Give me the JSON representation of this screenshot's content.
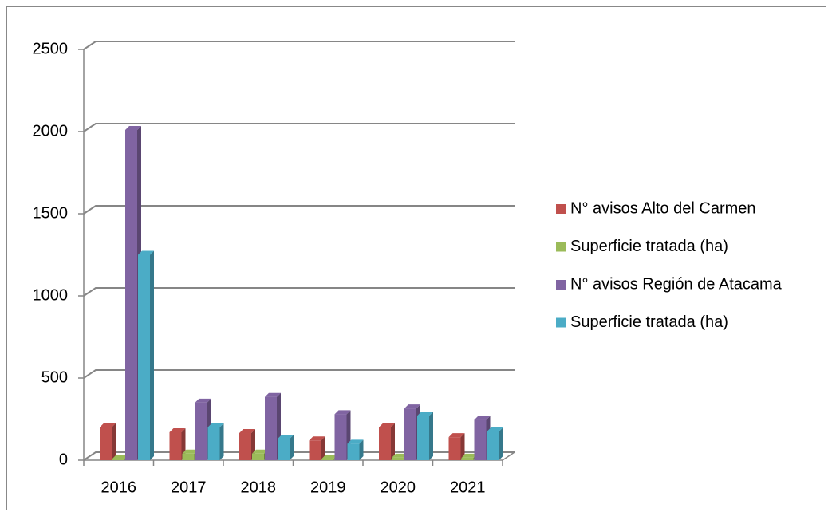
{
  "chart_data": {
    "type": "bar3d",
    "categories": [
      "2016",
      "2017",
      "2018",
      "2019",
      "2020",
      "2021"
    ],
    "series": [
      {
        "name": "N° avisos Alto del Carmen",
        "color": "#c0504d",
        "values": [
          200,
          170,
          165,
          120,
          200,
          140
        ]
      },
      {
        "name": "Superficie tratada (ha)",
        "color": "#9bbb59",
        "values": [
          10,
          40,
          40,
          10,
          15,
          15
        ]
      },
      {
        "name": "N° avisos Región de Atacama",
        "color": "#8064a2",
        "values": [
          2010,
          350,
          385,
          280,
          315,
          245
        ]
      },
      {
        "name": "Superficie tratada (ha)",
        "color": "#4bacc6",
        "values": [
          1250,
          200,
          130,
          100,
          270,
          175
        ]
      }
    ],
    "ylim": [
      0,
      2500
    ],
    "yticks": [
      0,
      500,
      1000,
      1500,
      2000,
      2500
    ],
    "grid": true,
    "legend": "right"
  }
}
